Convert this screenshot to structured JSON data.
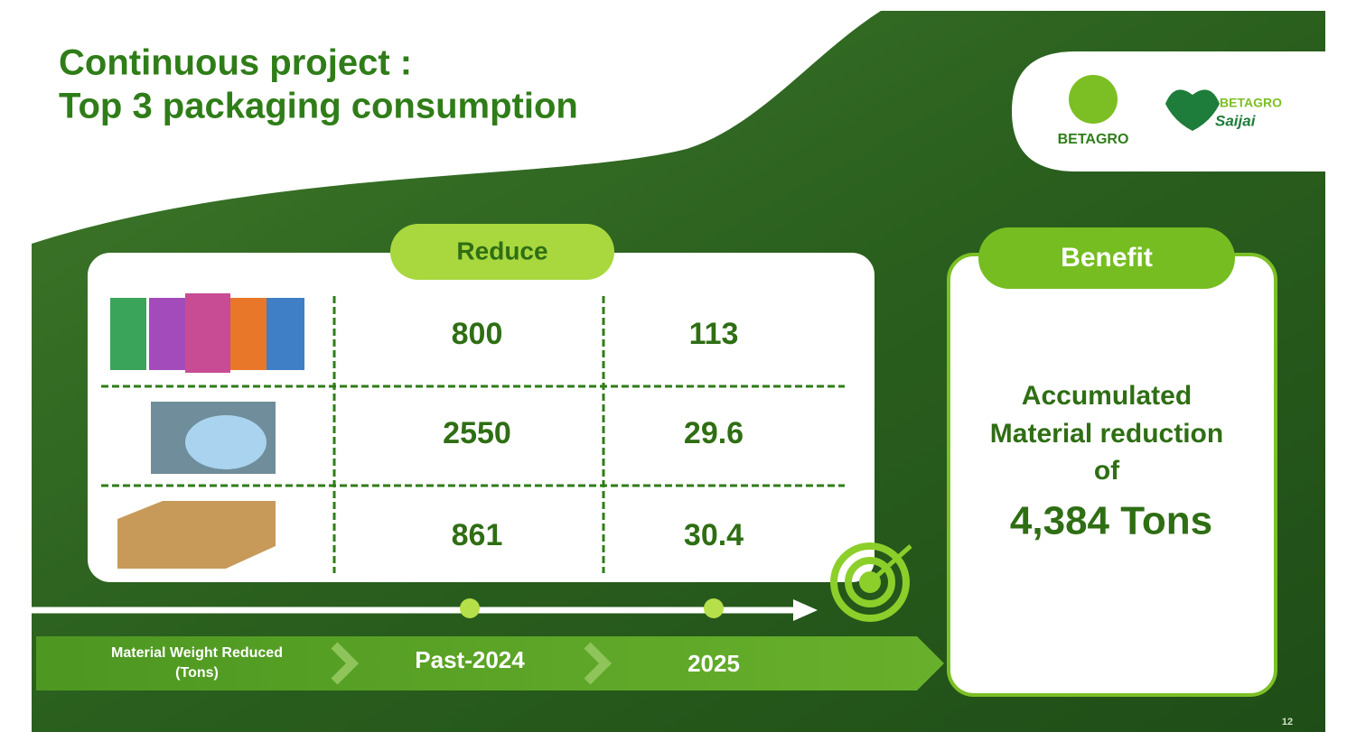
{
  "header": {
    "title_lines": [
      "Continuous project :",
      "Top 3 packaging consumption"
    ]
  },
  "logos": {
    "brand": "BETAGRO",
    "sub_brand_top": "BETAGRO",
    "sub_brand_bottom": "Saijai"
  },
  "table": {
    "header": "Reduce",
    "rows": [
      [
        "800",
        "113"
      ],
      [
        "2550",
        "29.6"
      ],
      [
        "861",
        "30.4"
      ]
    ]
  },
  "timeline": {
    "label_lines": [
      "Material Weight Reduced",
      "(Tons)"
    ],
    "columns": [
      "Past-2024",
      "2025"
    ]
  },
  "benefit": {
    "header": "Benefit",
    "lines": [
      "Accumulated",
      "Material reduction",
      "of"
    ],
    "total": "4,384 Tons"
  },
  "page_number": "12"
}
